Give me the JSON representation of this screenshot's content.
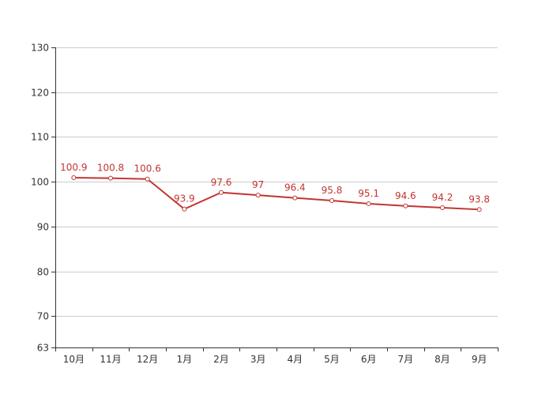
{
  "chart_data": {
    "type": "line",
    "categories": [
      "10月",
      "11月",
      "12月",
      "1月",
      "2月",
      "3月",
      "4月",
      "5月",
      "6月",
      "7月",
      "8月",
      "9月"
    ],
    "series": [
      {
        "values": [
          100.9,
          100.8,
          100.6,
          93.9,
          97.6,
          97,
          96.4,
          95.8,
          95.1,
          94.6,
          94.2,
          93.8
        ],
        "color": "#c23531"
      }
    ],
    "ylim": [
      63,
      130
    ],
    "yticks": [
      63,
      70,
      80,
      90,
      100,
      110,
      120,
      130
    ],
    "grid": true,
    "data_labels": true,
    "colors": {
      "line": "#c23531",
      "grid": "#cccccc",
      "axis": "#333333",
      "text": "#333333"
    }
  }
}
